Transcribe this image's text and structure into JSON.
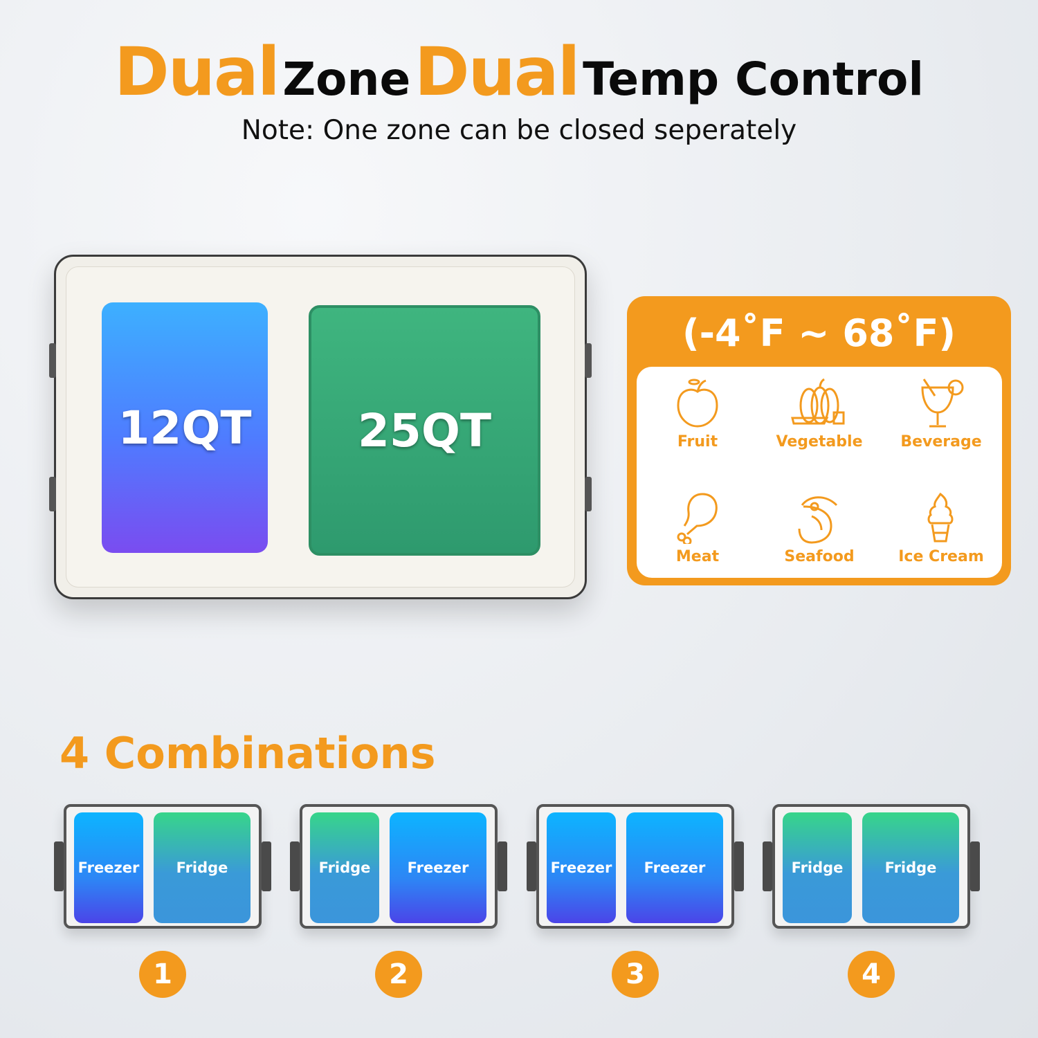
{
  "colors": {
    "orange": "#f39a1e",
    "freezer": "#2d86f5",
    "fridge": "#37c58a"
  },
  "header": {
    "title_parts": [
      "Dual",
      "Zone",
      "Dual",
      "Temp Control"
    ],
    "subtitle": "Note: One zone can be closed seperately"
  },
  "cooler": {
    "small_zone": "12QT",
    "large_zone": "25QT"
  },
  "temperature": {
    "range": "(-4˚F ~ 68˚F)",
    "foods": [
      {
        "label": "Fruit",
        "icon": "apple-icon"
      },
      {
        "label": "Vegetable",
        "icon": "vegetable-icon"
      },
      {
        "label": "Beverage",
        "icon": "cocktail-icon"
      },
      {
        "label": "Meat",
        "icon": "drumstick-icon"
      },
      {
        "label": "Seafood",
        "icon": "shrimp-icon"
      },
      {
        "label": "Ice Cream",
        "icon": "ice-cream-icon"
      }
    ]
  },
  "combinations": {
    "title": "4 Combinations",
    "items": [
      {
        "number": "1",
        "left": "Freezer",
        "right": "Fridge"
      },
      {
        "number": "2",
        "left": "Fridge",
        "right": "Freezer"
      },
      {
        "number": "3",
        "left": "Freezer",
        "right": "Freezer"
      },
      {
        "number": "4",
        "left": "Fridge",
        "right": "Fridge"
      }
    ]
  }
}
